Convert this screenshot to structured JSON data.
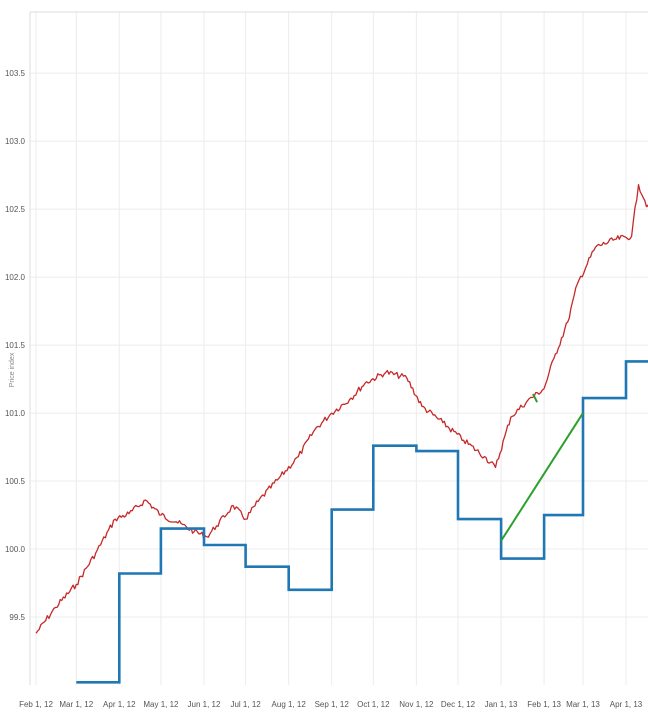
{
  "chart_data": {
    "type": "line",
    "title": "",
    "xlabel": "",
    "ylabel": "Price index",
    "ylim": [
      99.0,
      103.95
    ],
    "grid": true,
    "x_ticks": [
      "Feb 1, 12",
      "Mar 1, 12",
      "Apr 1, 12",
      "May 1, 12",
      "Jun 1, 12",
      "Jul 1, 12",
      "Aug 1, 12",
      "Sep 1, 12",
      "Oct 1, 12",
      "Nov 1, 12",
      "Dec 1, 12",
      "Jan 1, 13",
      "Feb 1, 13",
      "Mar 1, 13",
      "Apr 1, 13"
    ],
    "y_ticks": [
      "99.5",
      "100.0",
      "100.5",
      "101.0",
      "101.5",
      "102.0",
      "102.5",
      "103.0",
      "103.5"
    ],
    "series": [
      {
        "color": "#c62828",
        "x": [
          "2012-02-01",
          "2012-02-15",
          "2012-03-01",
          "2012-03-15",
          "2012-03-29",
          "2012-04-08",
          "2012-04-20",
          "2012-05-01",
          "2012-05-12",
          "2012-05-25",
          "2012-06-03",
          "2012-06-10",
          "2012-06-22",
          "2012-07-01",
          "2012-07-10",
          "2012-07-25",
          "2012-08-08",
          "2012-08-20",
          "2012-09-01",
          "2012-09-15",
          "2012-09-25",
          "2012-10-10",
          "2012-10-25",
          "2012-11-05",
          "2012-11-20",
          "2012-12-05",
          "2012-12-20",
          "2012-12-28",
          "2013-01-08",
          "2013-01-20",
          "2013-02-01",
          "2013-02-08",
          "2013-02-18",
          "2013-02-25",
          "2013-03-10",
          "2013-03-25",
          "2013-04-05",
          "2013-04-10",
          "2013-04-18"
        ],
        "y": [
          99.38,
          99.57,
          99.74,
          99.97,
          100.22,
          100.26,
          100.36,
          100.25,
          100.2,
          100.13,
          100.09,
          100.17,
          100.32,
          100.22,
          100.35,
          100.52,
          100.68,
          100.88,
          101.0,
          101.11,
          101.22,
          101.3,
          101.26,
          101.05,
          100.93,
          100.8,
          100.68,
          100.6,
          100.97,
          101.09,
          101.18,
          101.4,
          101.67,
          101.95,
          102.22,
          102.28,
          102.3,
          102.68,
          102.48
        ]
      },
      {
        "color": "#1f77b4",
        "x": [
          "2012-02-01",
          "2012-03-01",
          "2012-04-01",
          "2012-05-01",
          "2012-06-01",
          "2012-07-01",
          "2012-08-01",
          "2012-09-01",
          "2012-10-01",
          "2012-11-01",
          "2012-12-01",
          "2013-01-01",
          "2013-02-01",
          "2013-03-01",
          "2013-04-01"
        ],
        "y": [
          null,
          99.02,
          99.82,
          100.15,
          100.03,
          99.87,
          99.7,
          100.29,
          100.76,
          100.72,
          100.22,
          99.93,
          100.25,
          101.11,
          101.38
        ]
      },
      {
        "color": "#2ca02c",
        "x": [
          "2013-01-01",
          "2013-03-01"
        ],
        "y": [
          100.06,
          101.0
        ]
      },
      {
        "color": "#2ca02c",
        "x": [
          "2013-01-24",
          "2013-01-27"
        ],
        "y": [
          101.14,
          101.08
        ]
      }
    ]
  }
}
